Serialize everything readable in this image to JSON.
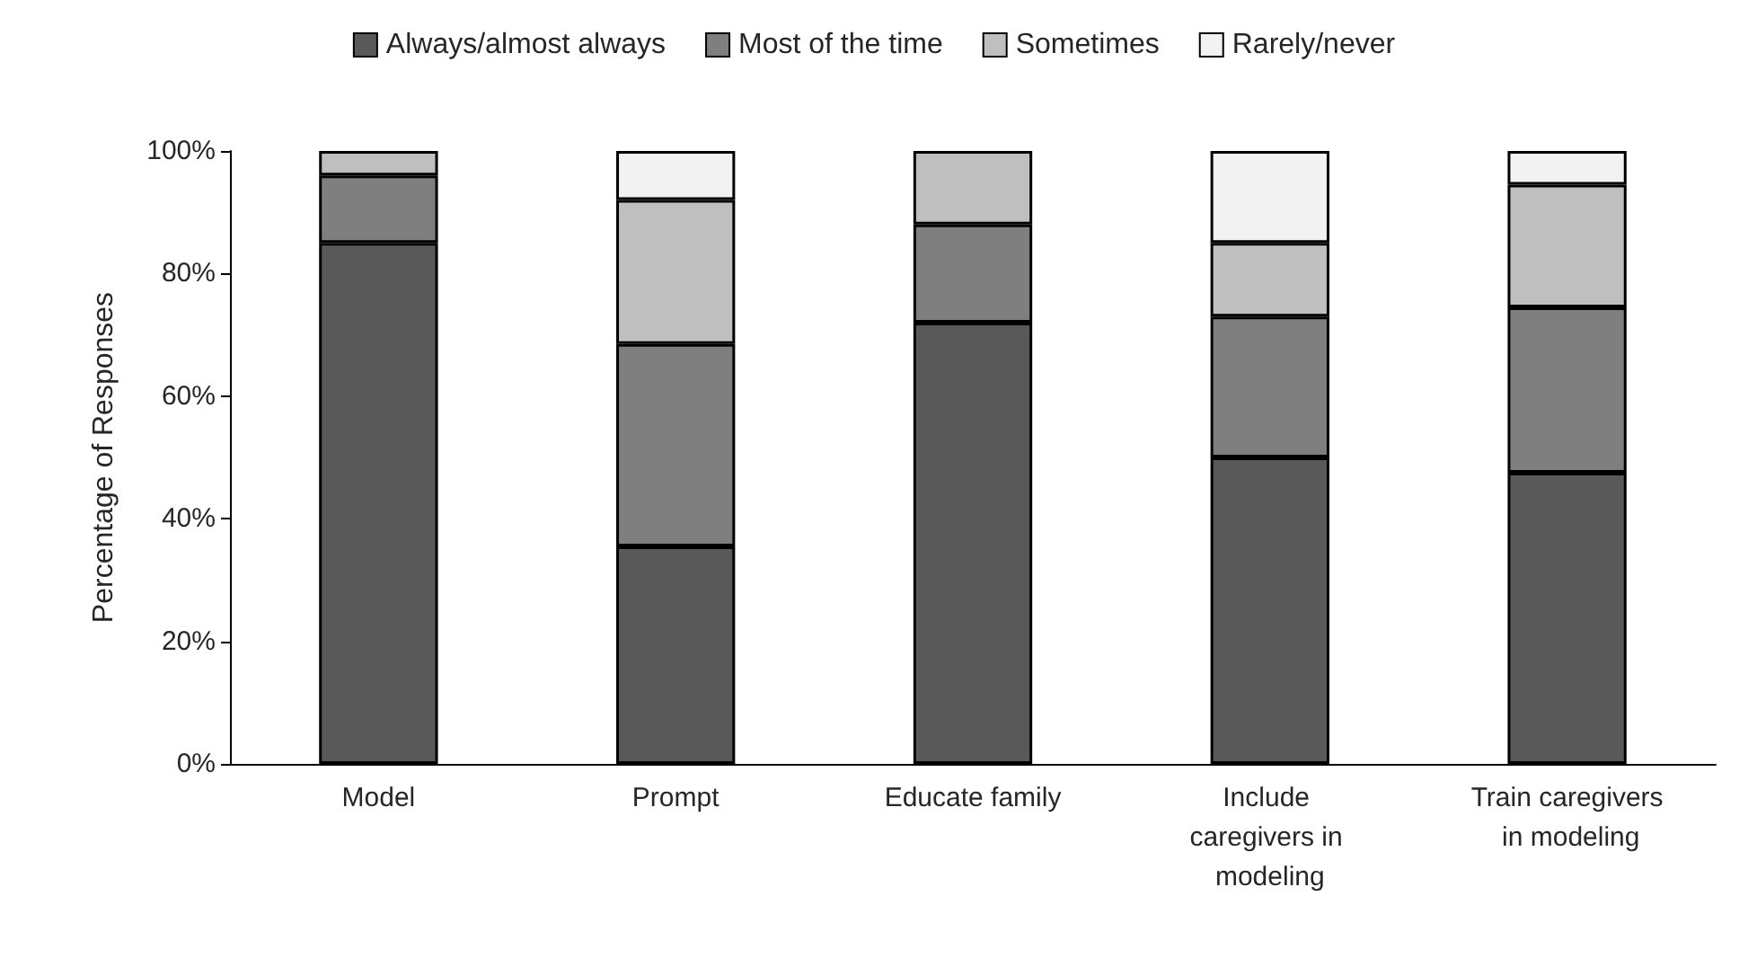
{
  "chart_data": {
    "type": "bar",
    "stacked": true,
    "ylabel": "Percentage of Responses",
    "categories": [
      "Model",
      "Prompt",
      "Educate family",
      "Include caregivers in modeling",
      "Train caregivers in modeling"
    ],
    "series": [
      {
        "name": "Always/almost always",
        "color": "#595959",
        "values": [
          85,
          35.5,
          72,
          50,
          47.5
        ]
      },
      {
        "name": "Most of the time",
        "color": "#7f7f7f",
        "values": [
          11,
          33,
          16,
          23,
          27
        ]
      },
      {
        "name": "Sometimes",
        "color": "#bfbfbf",
        "values": [
          4,
          23.5,
          12,
          12,
          20
        ]
      },
      {
        "name": "Rarely/never",
        "color": "#f2f2f2",
        "values": [
          0,
          8,
          0,
          15,
          5.5
        ]
      }
    ],
    "ylim": [
      0,
      100
    ],
    "yticks": [
      {
        "value": 0,
        "label": "0%"
      },
      {
        "value": 20,
        "label": "20%"
      },
      {
        "value": 40,
        "label": "40%"
      },
      {
        "value": 60,
        "label": "60%"
      },
      {
        "value": 80,
        "label": "80%"
      },
      {
        "value": 100,
        "label": "100%"
      }
    ],
    "grid": false,
    "legend": "top"
  }
}
